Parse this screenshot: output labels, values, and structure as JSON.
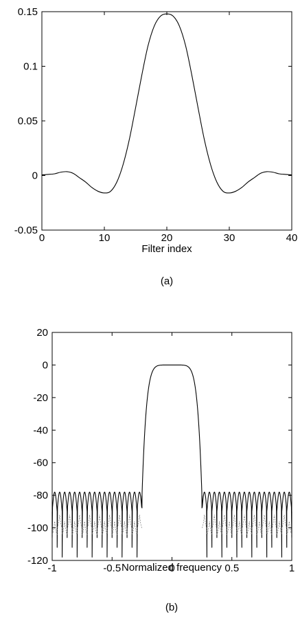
{
  "chart_data": [
    {
      "type": "line",
      "panel": "(a)",
      "xlabel": "Filter index",
      "ylabel": "",
      "xlim": [
        0,
        40
      ],
      "ylim": [
        -0.05,
        0.15
      ],
      "xticks": [
        0,
        10,
        20,
        30,
        40
      ],
      "xtick_labels": [
        "0",
        "10",
        "20",
        "30",
        "40"
      ],
      "yticks": [
        -0.05,
        0,
        0.05,
        0.1,
        0.15
      ],
      "ytick_labels": [
        "-0.05",
        "0",
        "0.05",
        "0.1",
        "0.15"
      ],
      "grid": false,
      "series": [
        {
          "x": [
            0,
            1,
            2,
            3,
            4,
            5,
            6,
            7,
            8,
            9,
            10,
            11,
            12,
            13,
            14,
            15,
            16,
            17,
            18,
            19,
            20,
            21,
            22,
            23,
            24,
            25,
            26,
            27,
            28,
            29,
            30,
            31,
            32,
            33,
            34,
            35,
            36,
            37,
            38,
            39,
            40
          ],
          "values": [
            0.0005,
            0.001,
            0.0015,
            0.003,
            0.0035,
            0.002,
            -0.002,
            -0.006,
            -0.011,
            -0.0145,
            -0.016,
            -0.0145,
            -0.006,
            0.01,
            0.033,
            0.062,
            0.092,
            0.119,
            0.137,
            0.146,
            0.148,
            0.146,
            0.137,
            0.119,
            0.092,
            0.062,
            0.033,
            0.01,
            -0.006,
            -0.0145,
            -0.016,
            -0.0145,
            -0.011,
            -0.006,
            -0.002,
            0.002,
            0.0035,
            0.003,
            0.0015,
            0.001,
            0.0005
          ]
        }
      ]
    },
    {
      "type": "line",
      "panel": "(b)",
      "xlabel": "Normalized frequency",
      "ylabel": "",
      "xlim": [
        -1,
        1
      ],
      "ylim": [
        -120,
        20
      ],
      "xticks": [
        -1,
        -0.5,
        0,
        0.5,
        1
      ],
      "xtick_labels": [
        "-1",
        "-0.5",
        "0",
        "0.5",
        "1"
      ],
      "yticks": [
        -120,
        -100,
        -80,
        -60,
        -40,
        -20,
        0,
        20
      ],
      "ytick_labels": [
        "-120",
        "-100",
        "-80",
        "-60",
        "-40",
        "-20",
        "0",
        "20"
      ],
      "grid": false,
      "passband": {
        "edge": 0.25,
        "level": 0
      },
      "stopband": {
        "ripple_top": -78,
        "ripple_floor": -90,
        "null_depth": -120,
        "ripple_count_per_side": 18
      }
    }
  ],
  "captions": {
    "a": "(a)",
    "b": "(b)"
  }
}
